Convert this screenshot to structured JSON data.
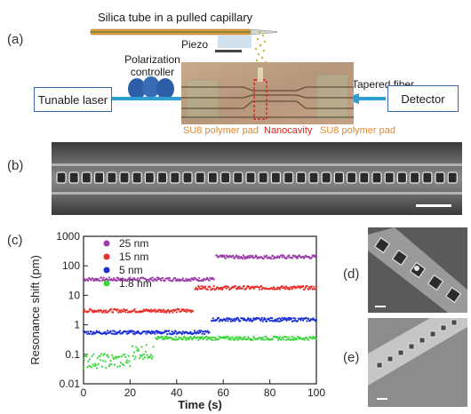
{
  "panel_a": {
    "label": "(a)",
    "capillary_label": "Silica tube in a pulled capillary",
    "piezo_label": "Piezo",
    "polarization_label": "Polarization controller",
    "laser_label": "Tunable laser",
    "fiber_label": "Tapered fiber",
    "detector_label": "Detector",
    "pad_left_label": "SU8 polymer pad",
    "nanocavity_label": "Nanocavity",
    "pad_right_label": "SU8 polymer pad",
    "colors": {
      "pad": "#e08a2e",
      "nanocavity": "#d9251c",
      "fiber": "#2b9fd6",
      "paddle": "#2d5fa8"
    }
  },
  "panel_b": {
    "label": "(b)"
  },
  "panel_c": {
    "label": "(c)"
  },
  "panel_d": {
    "label": "(d)"
  },
  "panel_e": {
    "label": "(e)"
  },
  "chart_data": {
    "type": "scatter",
    "xlabel": "Time (s)",
    "ylabel": "Resonance shift (pm)",
    "x_range": [
      0,
      100
    ],
    "y_scale": "log",
    "y_range": [
      0.01,
      1000
    ],
    "x_ticks": [
      "0",
      "20",
      "40",
      "60",
      "80",
      "100"
    ],
    "y_ticks": [
      "0.01",
      "0.1",
      "1",
      "10",
      "100",
      "1000"
    ],
    "legend_position": "top-left",
    "series": [
      {
        "name": "25 nm",
        "color": "#9b3fa8",
        "segments": [
          {
            "x": [
              0,
              56
            ],
            "y": 35
          },
          {
            "x": [
              57,
              100
            ],
            "y": 200
          }
        ]
      },
      {
        "name": "15 nm",
        "color": "#e8302d",
        "segments": [
          {
            "x": [
              0,
              47
            ],
            "y": 3
          },
          {
            "x": [
              48,
              100
            ],
            "y": 18
          }
        ]
      },
      {
        "name": "5 nm",
        "color": "#1b2fd6",
        "segments": [
          {
            "x": [
              0,
              54
            ],
            "y": 0.55
          },
          {
            "x": [
              55,
              100
            ],
            "y": 1.5
          }
        ]
      },
      {
        "name": "1.8 nm",
        "color": "#3cd63c",
        "segments": [
          {
            "x": [
              0,
              20
            ],
            "y": 0.06
          },
          {
            "x": [
              21,
              30
            ],
            "y": 0.12
          },
          {
            "x": [
              31,
              100
            ],
            "y": 0.35
          }
        ]
      }
    ]
  }
}
